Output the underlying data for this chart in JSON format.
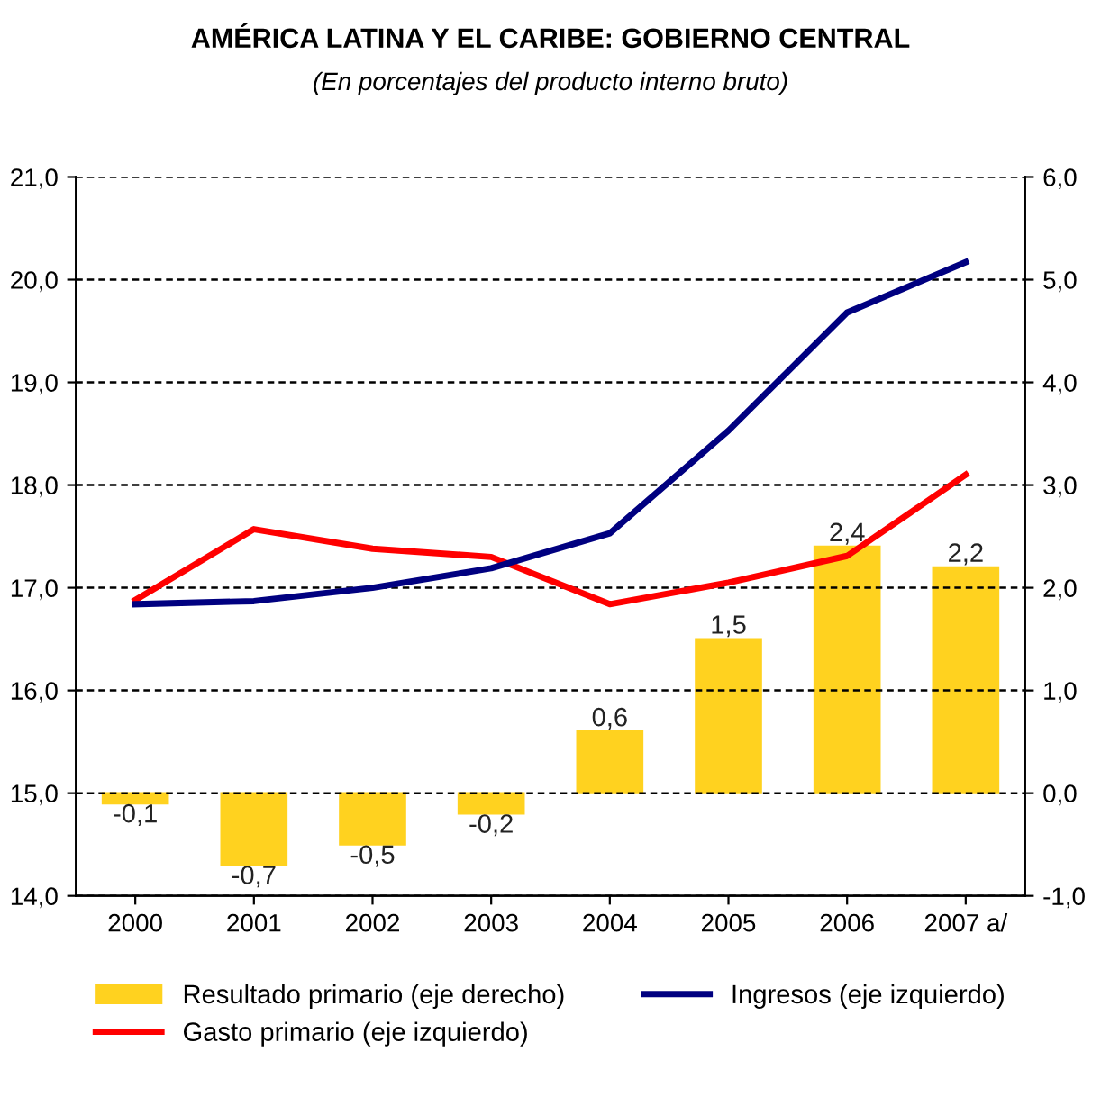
{
  "chart_data": {
    "type": "bar",
    "title": "AMÉRICA LATINA Y EL CARIBE: GOBIERNO CENTRAL",
    "subtitle": "(En porcentajes del producto interno bruto)",
    "categories": [
      "2000",
      "2001",
      "2002",
      "2003",
      "2004",
      "2005",
      "2006",
      "2007 a/"
    ],
    "series": [
      {
        "name": "Resultado primario (eje derecho)",
        "axis": "y2",
        "color": "#ffd21f",
        "values": [
          -0.1,
          -0.7,
          -0.5,
          -0.2,
          0.6,
          1.5,
          2.4,
          2.2
        ],
        "value_labels": [
          "-0,1",
          "-0,7",
          "-0,5",
          "-0,2",
          "0,6",
          "1,5",
          "2,4",
          "2,2"
        ]
      },
      {
        "name": "Gasto primario (eje izquierdo)",
        "type": "line",
        "color": "#ff0000",
        "values": [
          16.88,
          17.57,
          17.38,
          17.3,
          16.84,
          17.05,
          17.31,
          18.1
        ]
      },
      {
        "name": "Ingresos (eje izquierdo)",
        "type": "line",
        "color": "#000080",
        "values": [
          16.84,
          16.87,
          17.0,
          17.19,
          17.53,
          18.53,
          19.68,
          20.17
        ]
      }
    ],
    "ylim": [
      14,
      21
    ],
    "yticks": [
      {
        "value": 14,
        "label": "14,0"
      },
      {
        "value": 15,
        "label": "15,0"
      },
      {
        "value": 16,
        "label": "16,0"
      },
      {
        "value": 17,
        "label": "17,0"
      },
      {
        "value": 18,
        "label": "18,0"
      },
      {
        "value": 19,
        "label": "19,0"
      },
      {
        "value": 20,
        "label": "20,0"
      },
      {
        "value": 21,
        "label": "21,0"
      }
    ],
    "y2lim": [
      -1,
      6
    ],
    "y2ticks": [
      {
        "value": -1,
        "label": "-1,0"
      },
      {
        "value": 0,
        "label": "0,0"
      },
      {
        "value": 1,
        "label": "1,0"
      },
      {
        "value": 2,
        "label": "2,0"
      },
      {
        "value": 3,
        "label": "3,0"
      },
      {
        "value": 4,
        "label": "4,0"
      },
      {
        "value": 5,
        "label": "5,0"
      },
      {
        "value": 6,
        "label": "6,0"
      }
    ],
    "grid": "y",
    "legend": "bottom",
    "marker": "none",
    "line_style": "solid"
  }
}
